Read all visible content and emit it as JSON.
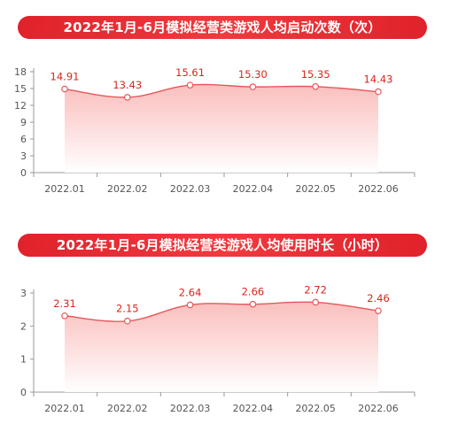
{
  "titles": {
    "chart1": "2022年1月-6月模拟经营类游戏人均启动次数（次）",
    "chart2": "2022年1月-6月模拟经营类游戏人均使用时长（小时）"
  },
  "colors": {
    "accent": "#e0222b",
    "line": "#e8575a",
    "fill_top": "#f9b4b2"
  },
  "chart_data": [
    {
      "type": "area",
      "title": "2022年1月-6月模拟经营类游戏人均启动次数（次）",
      "categories": [
        "2022.01",
        "2022.02",
        "2022.03",
        "2022.04",
        "2022.05",
        "2022.06"
      ],
      "values": [
        14.91,
        13.43,
        15.61,
        15.3,
        15.35,
        14.43
      ],
      "labels": [
        "14.91",
        "13.43",
        "15.61",
        "15.30",
        "15.35",
        "14.43"
      ],
      "ylim": [
        0,
        18
      ],
      "yticks": [
        "0",
        "3",
        "6",
        "9",
        "12",
        "15",
        "18"
      ],
      "grid": false
    },
    {
      "type": "area",
      "title": "2022年1月-6月模拟经营类游戏人均使用时长（小时）",
      "categories": [
        "2022.01",
        "2022.02",
        "2022.03",
        "2022.04",
        "2022.05",
        "2022.06"
      ],
      "values": [
        2.31,
        2.15,
        2.64,
        2.66,
        2.72,
        2.46
      ],
      "labels": [
        "2.31",
        "2.15",
        "2.64",
        "2.66",
        "2.72",
        "2.46"
      ],
      "ylim": [
        0,
        3
      ],
      "yticks": [
        "0",
        "1",
        "2",
        "3"
      ],
      "grid": false
    }
  ]
}
